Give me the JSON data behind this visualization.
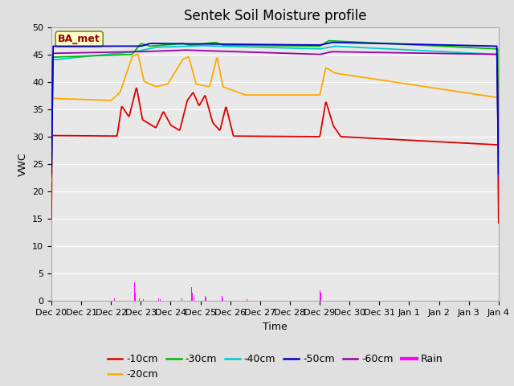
{
  "title": "Sentek Soil Moisture profile",
  "xlabel": "Time",
  "ylabel": "VWC",
  "legend_label": "BA_met",
  "ylim": [
    0,
    50
  ],
  "yticks": [
    0,
    5,
    10,
    15,
    20,
    25,
    30,
    35,
    40,
    45,
    50
  ],
  "fig_bg": "#e0e0e0",
  "plot_bg": "#e8e8e8",
  "line_colors": {
    "-10cm": "#dd0000",
    "-20cm": "#ffaa00",
    "-30cm": "#00bb00",
    "-40cm": "#00cccc",
    "-50cm": "#0000cc",
    "-60cm": "#9900aa",
    "Rain": "#ff00ff"
  },
  "xtick_labels": [
    "Dec 20",
    "Dec 21",
    "Dec 22",
    "Dec 23",
    "Dec 24",
    "Dec 25",
    "Dec 26",
    "Dec 27",
    "Dec 28",
    "Dec 29",
    "Dec 30",
    "Dec 31",
    "Jan 1",
    "Jan 2",
    "Jan 3",
    "Jan 4"
  ],
  "title_fontsize": 12,
  "axis_fontsize": 9,
  "tick_fontsize": 8
}
